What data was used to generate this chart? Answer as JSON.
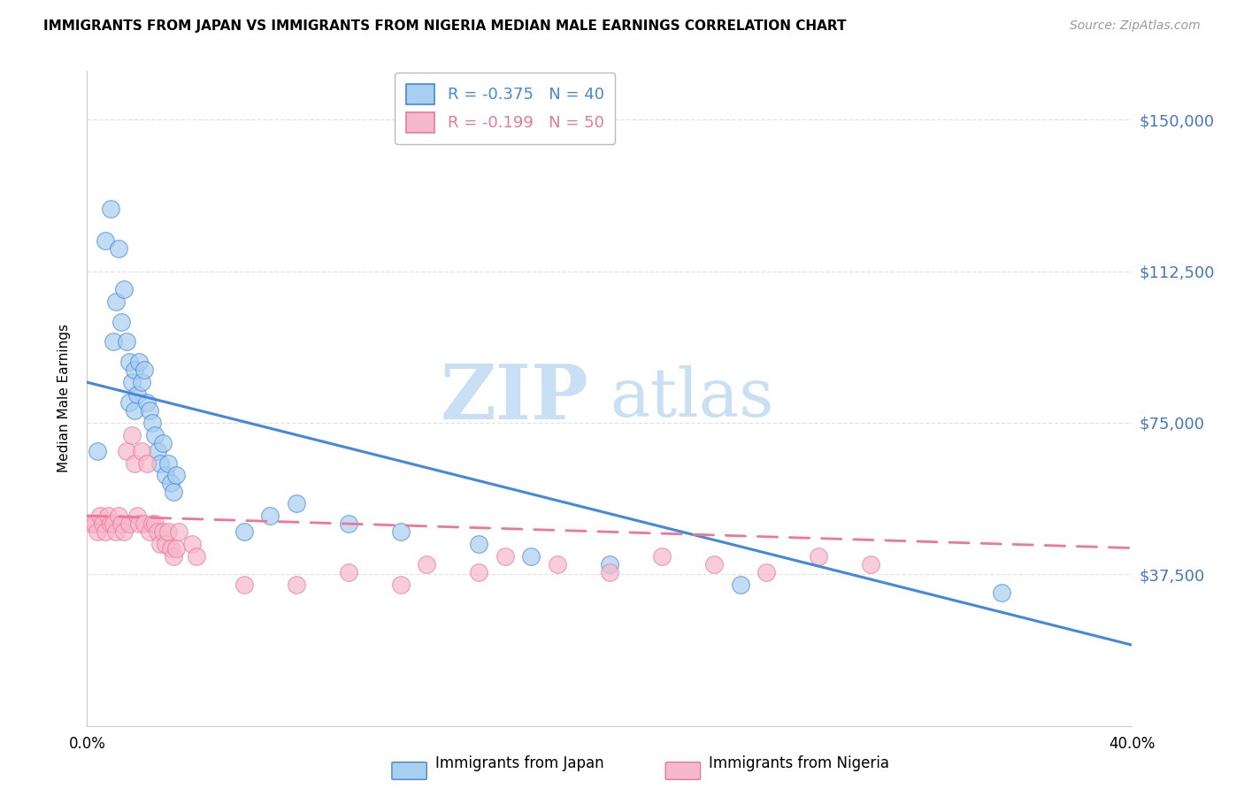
{
  "title": "IMMIGRANTS FROM JAPAN VS IMMIGRANTS FROM NIGERIA MEDIAN MALE EARNINGS CORRELATION CHART",
  "source": "Source: ZipAtlas.com",
  "ylabel": "Median Male Earnings",
  "ytick_values": [
    37500,
    75000,
    112500,
    150000
  ],
  "ymin": 0,
  "ymax": 162000,
  "xmin": 0.0,
  "xmax": 0.4,
  "legend_japan": "R = -0.375   N = 40",
  "legend_nigeria": "R = -0.199   N = 50",
  "color_japan": "#a8cef0",
  "color_nigeria": "#f5b8cc",
  "line_japan": "#4488dd",
  "line_nigeria": "#ee7799",
  "japan_points": [
    [
      0.004,
      68000
    ],
    [
      0.007,
      120000
    ],
    [
      0.009,
      128000
    ],
    [
      0.01,
      95000
    ],
    [
      0.011,
      105000
    ],
    [
      0.012,
      118000
    ],
    [
      0.013,
      100000
    ],
    [
      0.014,
      108000
    ],
    [
      0.015,
      95000
    ],
    [
      0.016,
      90000
    ],
    [
      0.016,
      80000
    ],
    [
      0.017,
      85000
    ],
    [
      0.018,
      78000
    ],
    [
      0.018,
      88000
    ],
    [
      0.019,
      82000
    ],
    [
      0.02,
      90000
    ],
    [
      0.021,
      85000
    ],
    [
      0.022,
      88000
    ],
    [
      0.023,
      80000
    ],
    [
      0.024,
      78000
    ],
    [
      0.025,
      75000
    ],
    [
      0.026,
      72000
    ],
    [
      0.027,
      68000
    ],
    [
      0.028,
      65000
    ],
    [
      0.029,
      70000
    ],
    [
      0.03,
      62000
    ],
    [
      0.031,
      65000
    ],
    [
      0.032,
      60000
    ],
    [
      0.033,
      58000
    ],
    [
      0.034,
      62000
    ],
    [
      0.06,
      48000
    ],
    [
      0.07,
      52000
    ],
    [
      0.08,
      55000
    ],
    [
      0.1,
      50000
    ],
    [
      0.12,
      48000
    ],
    [
      0.15,
      45000
    ],
    [
      0.17,
      42000
    ],
    [
      0.2,
      40000
    ],
    [
      0.25,
      35000
    ],
    [
      0.35,
      33000
    ]
  ],
  "nigeria_points": [
    [
      0.002,
      50000
    ],
    [
      0.003,
      50000
    ],
    [
      0.004,
      48000
    ],
    [
      0.005,
      52000
    ],
    [
      0.006,
      50000
    ],
    [
      0.007,
      48000
    ],
    [
      0.008,
      52000
    ],
    [
      0.009,
      50000
    ],
    [
      0.01,
      50000
    ],
    [
      0.011,
      48000
    ],
    [
      0.012,
      52000
    ],
    [
      0.013,
      50000
    ],
    [
      0.014,
      48000
    ],
    [
      0.015,
      68000
    ],
    [
      0.016,
      50000
    ],
    [
      0.017,
      72000
    ],
    [
      0.018,
      65000
    ],
    [
      0.019,
      52000
    ],
    [
      0.02,
      50000
    ],
    [
      0.021,
      68000
    ],
    [
      0.022,
      50000
    ],
    [
      0.023,
      65000
    ],
    [
      0.024,
      48000
    ],
    [
      0.025,
      50000
    ],
    [
      0.026,
      50000
    ],
    [
      0.027,
      48000
    ],
    [
      0.028,
      45000
    ],
    [
      0.029,
      48000
    ],
    [
      0.03,
      45000
    ],
    [
      0.031,
      48000
    ],
    [
      0.032,
      44000
    ],
    [
      0.033,
      42000
    ],
    [
      0.034,
      44000
    ],
    [
      0.035,
      48000
    ],
    [
      0.04,
      45000
    ],
    [
      0.042,
      42000
    ],
    [
      0.06,
      35000
    ],
    [
      0.08,
      35000
    ],
    [
      0.1,
      38000
    ],
    [
      0.12,
      35000
    ],
    [
      0.13,
      40000
    ],
    [
      0.15,
      38000
    ],
    [
      0.16,
      42000
    ],
    [
      0.18,
      40000
    ],
    [
      0.2,
      38000
    ],
    [
      0.22,
      42000
    ],
    [
      0.24,
      40000
    ],
    [
      0.26,
      38000
    ],
    [
      0.28,
      42000
    ],
    [
      0.3,
      40000
    ]
  ],
  "japan_regline_x": [
    0.0,
    0.4
  ],
  "japan_regline_y": [
    85000,
    20000
  ],
  "nigeria_regline_x": [
    0.0,
    0.4
  ],
  "nigeria_regline_y": [
    52000,
    44000
  ],
  "xticks": [
    0.0,
    0.08,
    0.16,
    0.24,
    0.32,
    0.4
  ],
  "xtick_labels": [
    "0.0%",
    "",
    "",
    "",
    "",
    "40.0%"
  ],
  "grid_color": "#dddddd",
  "watermark_zip": "ZIP",
  "watermark_atlas": "atlas",
  "watermark_color": "#c8dff5"
}
